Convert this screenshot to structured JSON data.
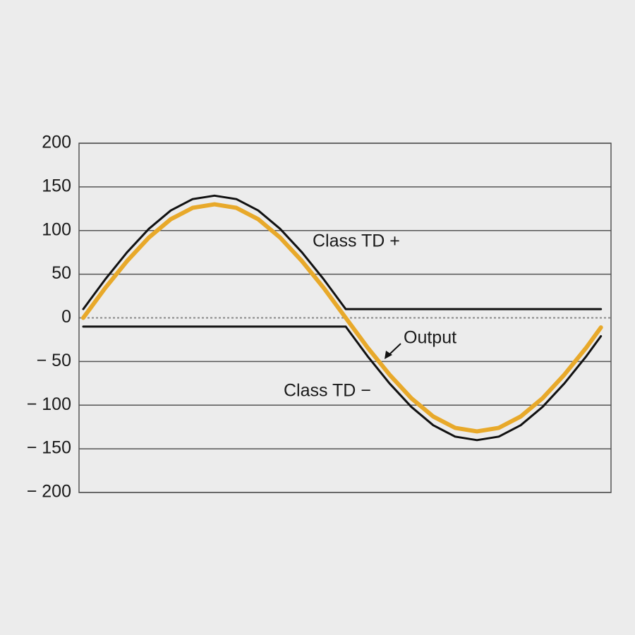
{
  "chart_data": {
    "type": "line",
    "x": [
      0,
      15,
      30,
      45,
      60,
      75,
      90,
      105,
      120,
      135,
      150,
      165,
      180,
      195,
      210,
      225,
      240,
      255,
      270,
      285,
      300,
      315,
      330,
      345,
      355
    ],
    "xlim": [
      0,
      360
    ],
    "ylim": [
      -200,
      200
    ],
    "yticks": [
      200,
      150,
      100,
      50,
      0,
      {
        "value": -50,
        "label": "− 50"
      },
      {
        "value": -100,
        "label": "− 100"
      },
      {
        "value": -150,
        "label": "− 150"
      },
      {
        "value": -200,
        "label": "− 200"
      }
    ],
    "grid": true,
    "series": [
      {
        "name": "Class TD +",
        "color": "#111111",
        "values": [
          10,
          44,
          75,
          102,
          123,
          136,
          140,
          136,
          123,
          102,
          75,
          44,
          10,
          10,
          10,
          10,
          10,
          10,
          10,
          10,
          10,
          10,
          10,
          10,
          10
        ]
      },
      {
        "name": "Class TD −",
        "color": "#111111",
        "values": [
          -10,
          -10,
          -10,
          -10,
          -10,
          -10,
          -10,
          -10,
          -10,
          -10,
          -10,
          -10,
          -10,
          -44,
          -75,
          -102,
          -123,
          -136,
          -140,
          -136,
          -123,
          -102,
          -75,
          -44,
          -21
        ]
      },
      {
        "name": "Output",
        "color": "#e8a92a",
        "values": [
          0,
          34,
          65,
          92,
          113,
          126,
          130,
          126,
          113,
          92,
          65,
          34,
          0,
          -34,
          -65,
          -92,
          -113,
          -126,
          -130,
          -126,
          -113,
          -92,
          -65,
          -34,
          -11
        ]
      }
    ]
  }
}
